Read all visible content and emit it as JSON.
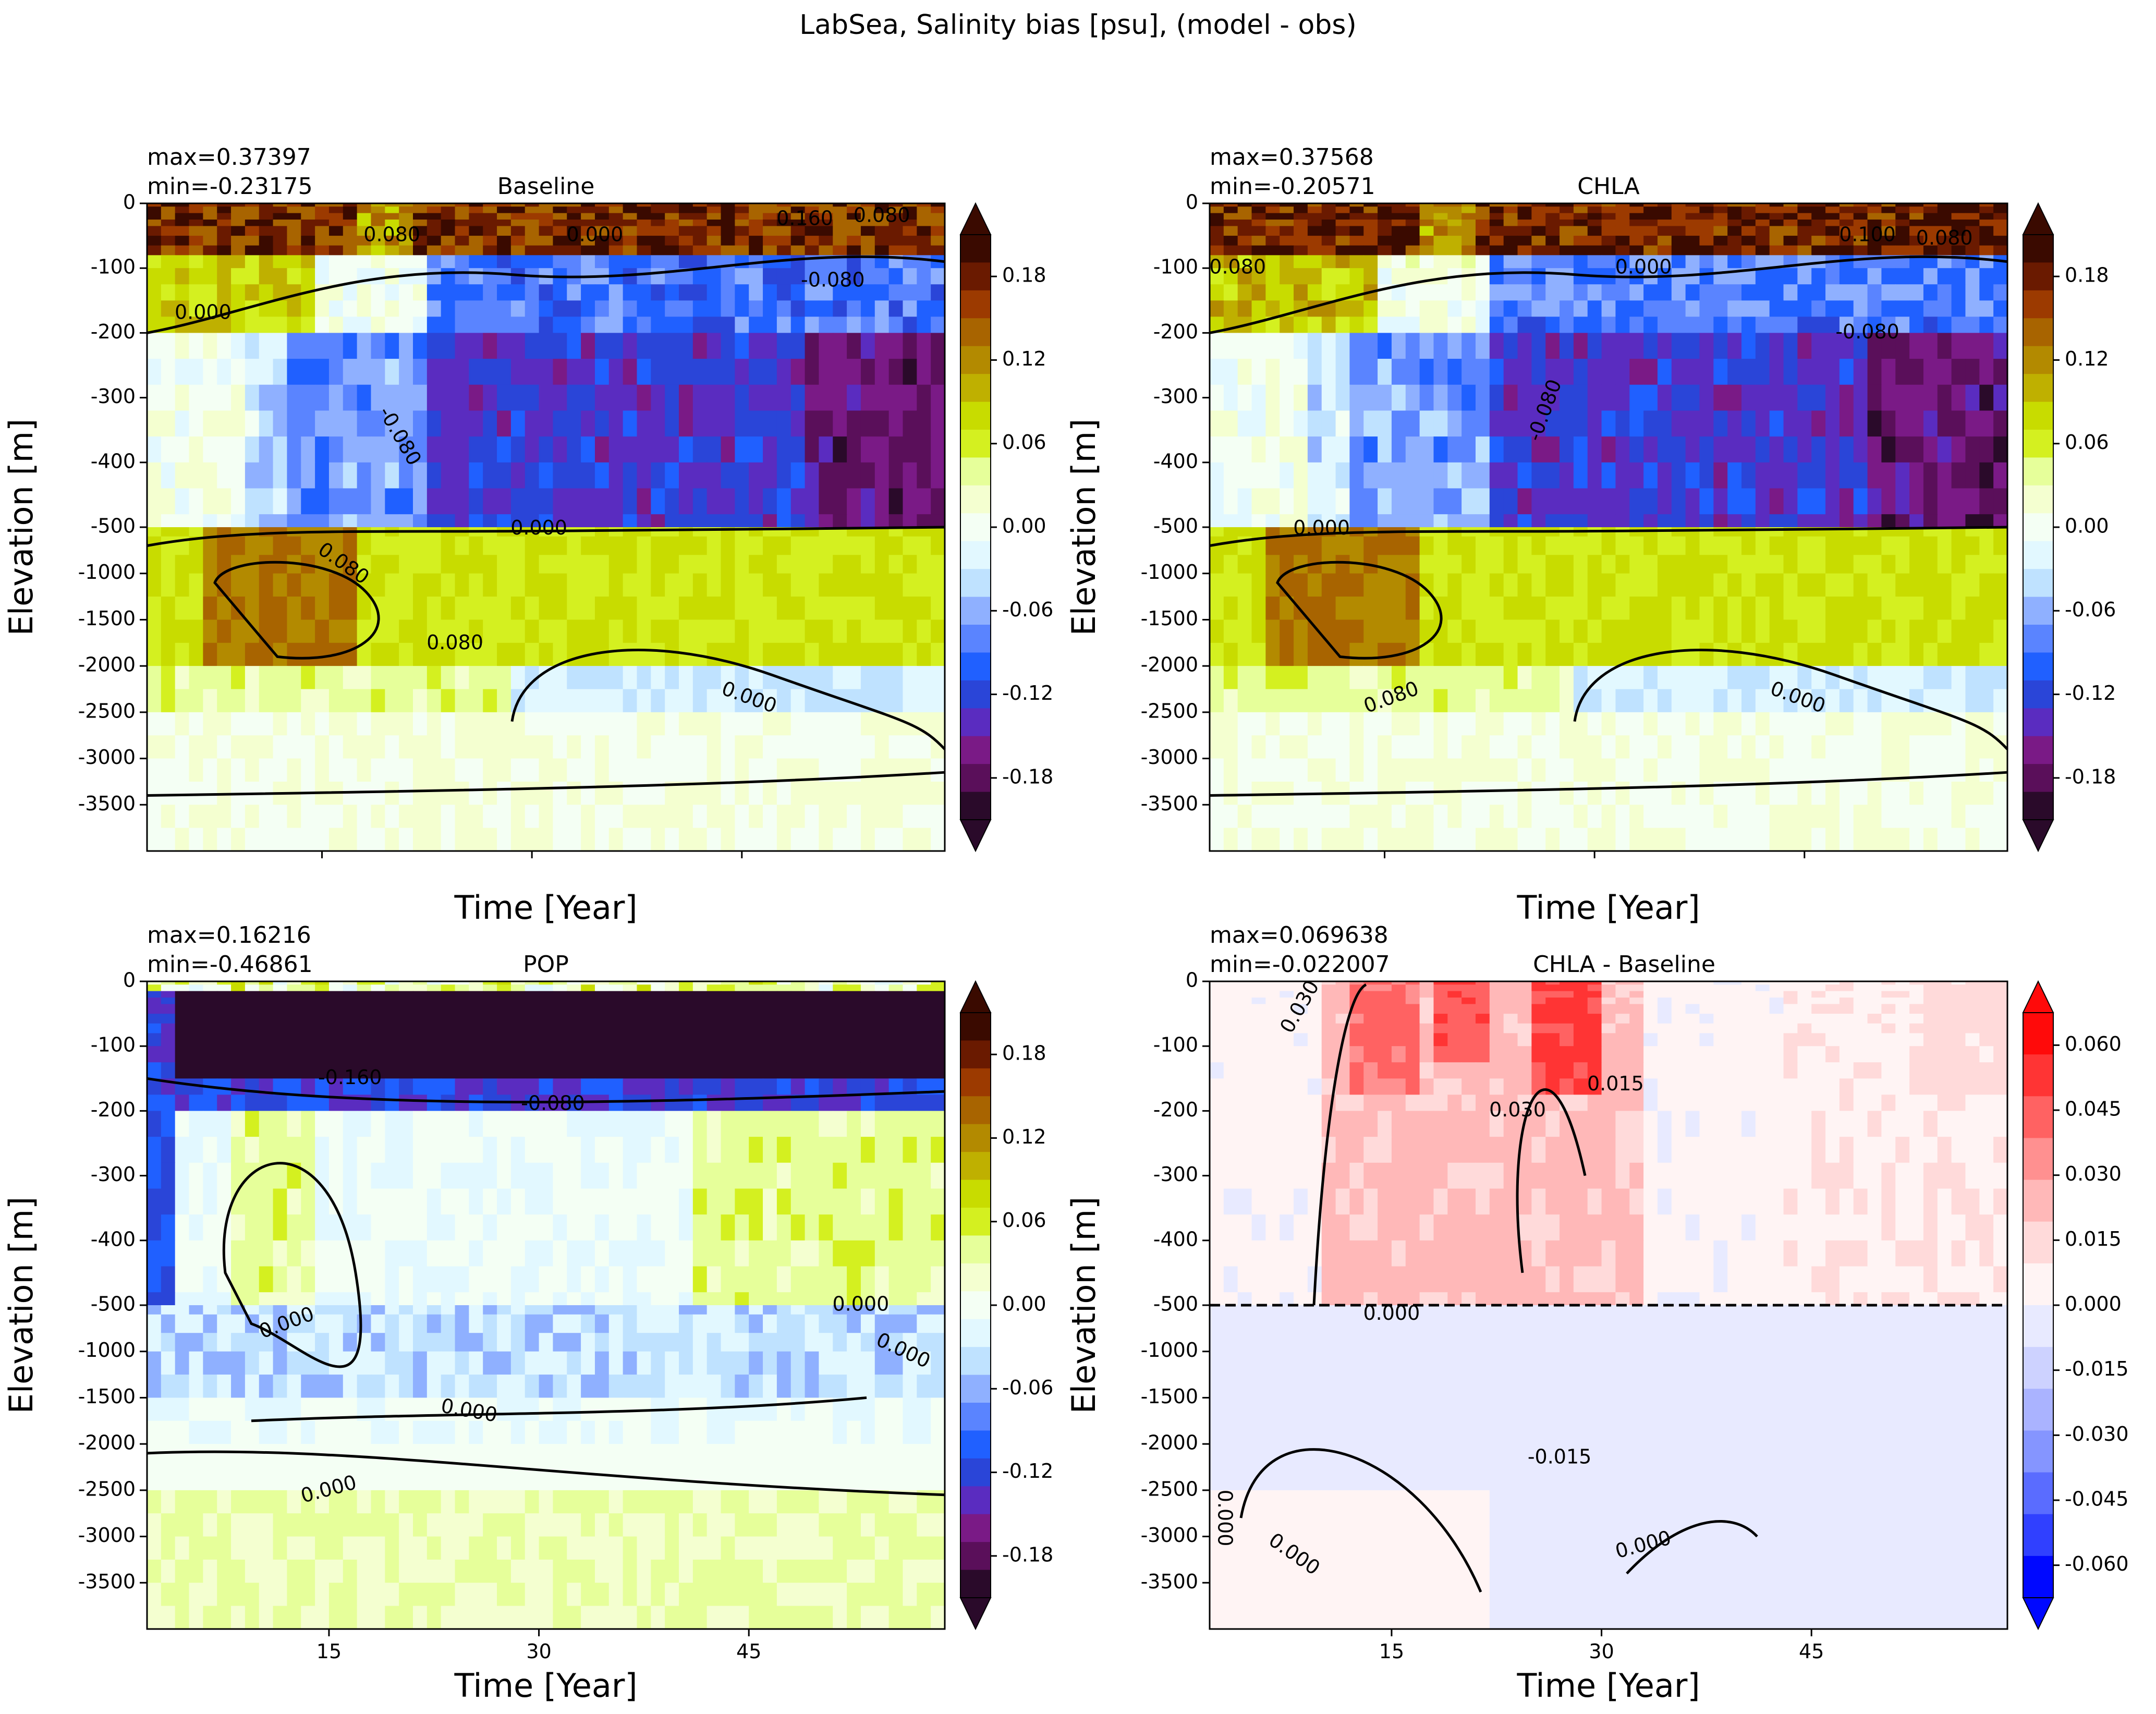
{
  "figure": {
    "suptitle": "LabSea, Salinity bias [psu], (model - obs)"
  },
  "chart_data": [
    {
      "type": "heatmap",
      "title": "Baseline",
      "stats": [
        "max=0.37397",
        "min=-0.23175"
      ],
      "xlabel": "Time [Year]",
      "ylabel": "Elevation [m]",
      "xlim": [
        0,
        57
      ],
      "xticks": [],
      "yticks": [
        "0",
        "-100",
        "-200",
        "-300",
        "-400",
        "-500",
        "-1000",
        "-1500",
        "-2000",
        "-2500",
        "-3000",
        "-3500"
      ],
      "colormap": "bias",
      "colorbar_ticks": [
        "0.18",
        "0.12",
        "0.06",
        "0.00",
        "-0.06",
        "-0.12",
        "-0.18"
      ],
      "colorbar_range": [
        -0.21,
        0.21
      ],
      "contour_labels": [
        {
          "text": "0.080",
          "x": 17.5,
          "y": -50
        },
        {
          "text": "0.000",
          "x": 4,
          "y": -170
        },
        {
          "text": "-0.080",
          "x": 18,
          "y": -360,
          "rotate": 60
        },
        {
          "text": "0.000",
          "x": 32,
          "y": -50
        },
        {
          "text": "0.160",
          "x": 47,
          "y": -25
        },
        {
          "text": "0.080",
          "x": 52.5,
          "y": -20
        },
        {
          "text": "-0.080",
          "x": 49,
          "y": -120
        },
        {
          "text": "0.000",
          "x": 28,
          "y": -520
        },
        {
          "text": "0.080",
          "x": 14,
          "y": -900,
          "rotate": 35
        },
        {
          "text": "0.080",
          "x": 22,
          "y": -1760
        },
        {
          "text": "0.000",
          "x": 43,
          "y": -2350,
          "rotate": 20
        }
      ]
    },
    {
      "type": "heatmap",
      "title": "CHLA",
      "stats": [
        "max=0.37568",
        "min=-0.20571"
      ],
      "xlabel": "Time [Year]",
      "ylabel": "Elevation [m]",
      "xlim": [
        0,
        57
      ],
      "xticks": [],
      "yticks": [
        "0",
        "-100",
        "-200",
        "-300",
        "-400",
        "-500",
        "-1000",
        "-1500",
        "-2000",
        "-2500",
        "-3000",
        "-3500"
      ],
      "colormap": "bias",
      "colorbar_ticks": [
        "0.18",
        "0.12",
        "0.06",
        "0.00",
        "-0.06",
        "-0.12",
        "-0.18"
      ],
      "colorbar_range": [
        -0.21,
        0.21
      ],
      "contour_labels": [
        {
          "text": "0.080",
          "x": 2,
          "y": -100
        },
        {
          "text": "0.000",
          "x": 31,
          "y": -100
        },
        {
          "text": "-0.080",
          "x": 24,
          "y": -320,
          "rotate": -70
        },
        {
          "text": "-0.080",
          "x": 47,
          "y": -200
        },
        {
          "text": "0.100",
          "x": 47,
          "y": -50
        },
        {
          "text": "0.080",
          "x": 52.5,
          "y": -55
        },
        {
          "text": "0.000",
          "x": 8,
          "y": -520
        },
        {
          "text": "0.080",
          "x": 13,
          "y": -2350,
          "rotate": -20
        },
        {
          "text": "0.000",
          "x": 42,
          "y": -2350,
          "rotate": 20
        }
      ]
    },
    {
      "type": "heatmap",
      "title": "POP",
      "stats": [
        "max=0.16216",
        "min=-0.46861"
      ],
      "xlabel": "Time [Year]",
      "ylabel": "Elevation [m]",
      "xlim": [
        2,
        59
      ],
      "xticks": [
        "15",
        "30",
        "45"
      ],
      "yticks": [
        "0",
        "-100",
        "-200",
        "-300",
        "-400",
        "-500",
        "-1000",
        "-1500",
        "-2000",
        "-2500",
        "-3000",
        "-3500"
      ],
      "colormap": "bias",
      "colorbar_ticks": [
        "0.18",
        "0.12",
        "0.06",
        "0.00",
        "-0.06",
        "-0.12",
        "-0.18"
      ],
      "colorbar_range": [
        -0.21,
        0.21
      ],
      "contour_labels": [
        {
          "text": "-0.160",
          "x": 16.5,
          "y": -150
        },
        {
          "text": "-0.080",
          "x": 31,
          "y": -190
        },
        {
          "text": "0.000",
          "x": 53,
          "y": -500
        },
        {
          "text": "0.000",
          "x": 12,
          "y": -700,
          "rotate": -20
        },
        {
          "text": "0.000",
          "x": 56,
          "y": -1000,
          "rotate": 25
        },
        {
          "text": "0.000",
          "x": 25,
          "y": -1650,
          "rotate": 10
        },
        {
          "text": "0.000",
          "x": 15,
          "y": -2500,
          "rotate": -15
        }
      ]
    },
    {
      "type": "heatmap",
      "title": "CHLA - Baseline",
      "stats": [
        "max=0.069638",
        "min=-0.022007"
      ],
      "xlabel": "Time [Year]",
      "ylabel": "Elevation [m]",
      "xlim": [
        2,
        59
      ],
      "xticks": [
        "15",
        "30",
        "45"
      ],
      "yticks": [
        "0",
        "-100",
        "-200",
        "-300",
        "-400",
        "-500",
        "-1000",
        "-1500",
        "-2000",
        "-2500",
        "-3000",
        "-3500"
      ],
      "colormap": "diff",
      "colorbar_ticks": [
        "0.060",
        "0.045",
        "0.030",
        "0.015",
        "0.000",
        "-0.015",
        "-0.030",
        "-0.045",
        "-0.060"
      ],
      "colorbar_range": [
        -0.0675,
        0.0675
      ],
      "contour_labels": [
        {
          "text": "0.030",
          "x": 8.5,
          "y": -40,
          "rotate": -60
        },
        {
          "text": "0.030",
          "x": 24,
          "y": -200
        },
        {
          "text": "0.015",
          "x": 31,
          "y": -160
        },
        {
          "text": "0.000",
          "x": 15,
          "y": -600
        },
        {
          "text": "-0.015",
          "x": 27,
          "y": -2150
        },
        {
          "text": "0.000",
          "x": 3,
          "y": -2800,
          "rotate": 90
        },
        {
          "text": "0.000",
          "x": 8,
          "y": -3200,
          "rotate": 35
        },
        {
          "text": "0.000",
          "x": 33,
          "y": -3100,
          "rotate": -15
        }
      ]
    }
  ]
}
